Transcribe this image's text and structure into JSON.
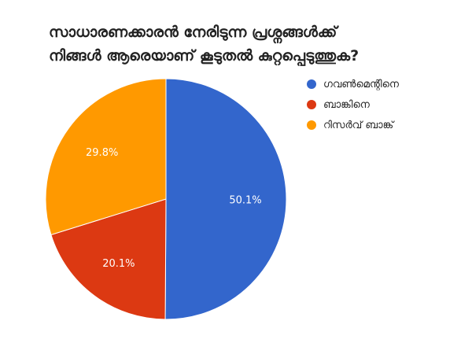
{
  "chart_data": {
    "type": "pie",
    "title": "സാധാരണക്കാരൻ നേരിടുന്ന പ്രശ്നങ്ങൾക്ക്\nനിങ്ങൾ ആരെയാണ് കൂടുതൽ കുറ്റപ്പെടുത്തുക?",
    "slices": [
      {
        "label": "ഗവൺമെന്റിനെ",
        "value": 50.1,
        "display": "50.1%",
        "color": "#3366cc"
      },
      {
        "label": "ബാങ്കിനെ",
        "value": 20.1,
        "display": "20.1%",
        "color": "#dc3912"
      },
      {
        "label": "റിസർവ് ബാങ്ക്",
        "value": 29.8,
        "display": "29.8%",
        "color": "#ff9900"
      }
    ],
    "legend_position": "right"
  }
}
